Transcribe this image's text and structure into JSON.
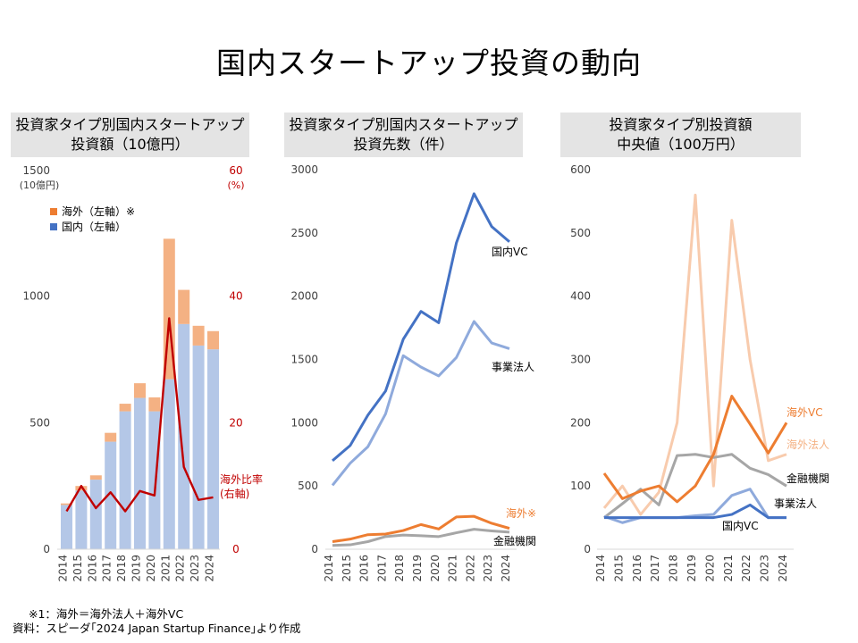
{
  "title": "国内スタートアップ投資の動向",
  "years": [
    "2014",
    "2015",
    "2016",
    "2017",
    "2018",
    "2019",
    "2020",
    "2021",
    "2022",
    "2023",
    "2024"
  ],
  "colors": {
    "domestic_bar": "#b4c7e7",
    "overseas_bar": "#f4b183",
    "ratio_line": "#c00000",
    "legend_overseas": "#ed7d31",
    "legend_domestic": "#4472c4",
    "vc_domestic": "#4472c4",
    "corp": "#8faadc",
    "overseas": "#ed7d31",
    "financial": "#a6a6a6",
    "overseas_corp": "#f8cbad",
    "overseas_corp_label": "#f4b183",
    "axis_red": "#c00000",
    "axis_text": "#404040",
    "axis_line": "#d9d9d9"
  },
  "panels": [
    {
      "line1": "投資家タイプ別国内スタートアップ",
      "line2": "投資額（10億円）"
    },
    {
      "line1": "投資家タイプ別国内スタートアップ",
      "line2": "投資先数（件）"
    },
    {
      "line1": "投資家タイプ別投資額",
      "line2": "中央値（100万円）"
    }
  ],
  "footnote": "※1：海外＝海外法人＋海外VC",
  "source": "資料：スピーダ｢2024 Japan Startup Finance｣より作成",
  "chart_data": [
    {
      "type": "bar",
      "stacked": true,
      "title": "投資家タイプ別国内スタートアップ投資額（10億円）",
      "left_axis": {
        "ticks": [
          "0",
          "500",
          "1000",
          "1500"
        ],
        "unit": "(10億円)",
        "ylim": [
          0,
          1500
        ]
      },
      "right_axis": {
        "ticks": [
          "0",
          "20",
          "40",
          "60"
        ],
        "unit": "(%)",
        "ylim": [
          0,
          60
        ]
      },
      "legend": [
        "海外（左軸）※",
        "国内（左軸）"
      ],
      "categories": [
        "2014",
        "2015",
        "2016",
        "2017",
        "2018",
        "2019",
        "2020",
        "2021",
        "2022",
        "2023",
        "2024"
      ],
      "series": [
        {
          "name": "国内（左軸）",
          "values": [
            175,
            232,
            275,
            425,
            545,
            598,
            545,
            672,
            890,
            805,
            790
          ]
        },
        {
          "name": "海外（左軸）※",
          "values": [
            6,
            18,
            17,
            35,
            30,
            58,
            55,
            555,
            135,
            78,
            72
          ]
        },
        {
          "name": "海外比率（右軸）",
          "axis": "right",
          "type": "line",
          "values": [
            6,
            10,
            6.5,
            9,
            6,
            9.2,
            8.5,
            36.5,
            13,
            7.8,
            8.2
          ]
        }
      ],
      "ratio_label_1": "海外比率",
      "ratio_label_2": "(右軸)"
    },
    {
      "type": "line",
      "title": "投資家タイプ別国内スタートアップ投資先数（件）",
      "ylim": [
        0,
        3000
      ],
      "yticks": [
        "0",
        "500",
        "1000",
        "1500",
        "2000",
        "2500",
        "3000"
      ],
      "categories": [
        "2014",
        "2015",
        "2016",
        "2017",
        "2018",
        "2019",
        "2020",
        "2021",
        "2022",
        "2023",
        "2024"
      ],
      "series": [
        {
          "name": "国内VC",
          "values": [
            700,
            820,
            1060,
            1250,
            1660,
            1880,
            1790,
            2420,
            2810,
            2550,
            2430
          ]
        },
        {
          "name": "事業法人",
          "values": [
            505,
            680,
            810,
            1070,
            1530,
            1440,
            1370,
            1515,
            1800,
            1630,
            1585
          ]
        },
        {
          "name": "海外※",
          "values": [
            60,
            80,
            115,
            120,
            148,
            195,
            160,
            255,
            260,
            205,
            165
          ]
        },
        {
          "name": "金融機関",
          "values": [
            30,
            35,
            60,
            100,
            112,
            107,
            100,
            130,
            158,
            145,
            135
          ]
        }
      ]
    },
    {
      "type": "line",
      "title": "投資家タイプ別投資額中央値（100万円）",
      "ylim": [
        0,
        600
      ],
      "yticks": [
        "0",
        "100",
        "200",
        "300",
        "400",
        "500",
        "600"
      ],
      "categories": [
        "2014",
        "2015",
        "2016",
        "2017",
        "2018",
        "2019",
        "2020",
        "2021",
        "2022",
        "2023",
        "2024"
      ],
      "series": [
        {
          "name": "海外法人",
          "values": [
            65,
            100,
            55,
            90,
            200,
            560,
            100,
            520,
            300,
            140,
            150
          ]
        },
        {
          "name": "金融機関",
          "values": [
            50,
            72,
            95,
            70,
            148,
            150,
            145,
            150,
            128,
            118,
            100
          ]
        },
        {
          "name": "事業法人",
          "values": [
            52,
            42,
            50,
            50,
            50,
            53,
            55,
            85,
            95,
            50,
            50
          ]
        },
        {
          "name": "国内VC",
          "values": [
            50,
            50,
            50,
            50,
            50,
            50,
            50,
            55,
            70,
            50,
            50
          ]
        },
        {
          "name": "海外VC",
          "values": [
            120,
            80,
            92,
            100,
            75,
            100,
            150,
            242,
            198,
            152,
            200
          ]
        }
      ]
    }
  ]
}
